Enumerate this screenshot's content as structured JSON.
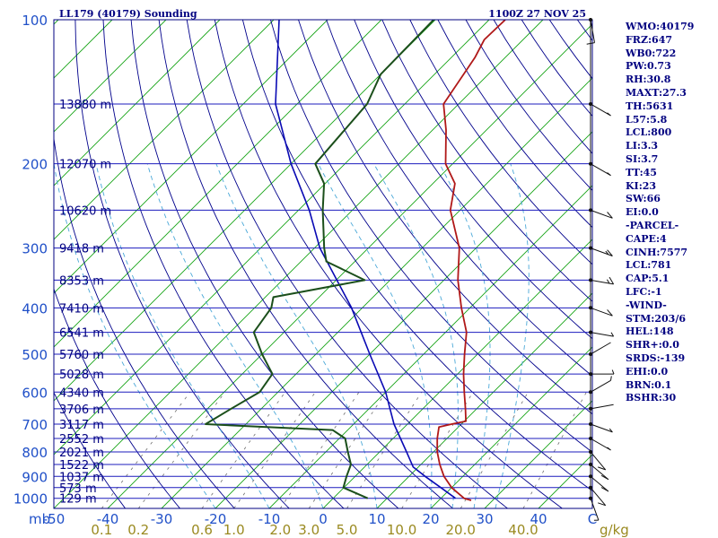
{
  "colors": {
    "isobar": "#1c1cbe",
    "frame": "#000080",
    "dry_adiabat": "#00008b",
    "moist_adiabat": "#4aa8d8",
    "mixing_ratio": "#6e6e6e",
    "isotherm": "#16a316",
    "temperature": "#b01818",
    "dewpoint": "#1b4f1b",
    "parcel": "#0a0ab4",
    "wind_barb": "#111111",
    "left_labels": "#2050c8",
    "ticks_mixing": "#9a8a20"
  },
  "chart_data": {
    "type": "skew-t log-p sounding",
    "title": "LL179 (40179) Sounding",
    "time": "1100Z 27 NOV 25",
    "pressure_unit_label": "mb",
    "mixing_unit_label": "g/kg",
    "pressure_ticks": [
      {
        "p": 100,
        "label": "100"
      },
      {
        "p": 200,
        "label": "200"
      },
      {
        "p": 300,
        "label": "300"
      },
      {
        "p": 400,
        "label": "400"
      },
      {
        "p": 500,
        "label": "500"
      },
      {
        "p": 600,
        "label": "600"
      },
      {
        "p": 700,
        "label": "700"
      },
      {
        "p": 800,
        "label": "800"
      },
      {
        "p": 900,
        "label": "900"
      },
      {
        "p": 1000,
        "label": "1000"
      }
    ],
    "height_levels": [
      {
        "p": 150,
        "label": "13880 m"
      },
      {
        "p": 200,
        "label": "12070 m"
      },
      {
        "p": 250,
        "label": "10620 m"
      },
      {
        "p": 300,
        "label": "9418 m"
      },
      {
        "p": 350,
        "label": "8353 m"
      },
      {
        "p": 400,
        "label": "7410 m"
      },
      {
        "p": 450,
        "label": "6541 m"
      },
      {
        "p": 500,
        "label": "5760 m"
      },
      {
        "p": 550,
        "label": "5028 m"
      },
      {
        "p": 600,
        "label": "4340 m"
      },
      {
        "p": 650,
        "label": "3706 m"
      },
      {
        "p": 700,
        "label": "3117 m"
      },
      {
        "p": 750,
        "label": "2552 m"
      },
      {
        "p": 800,
        "label": "2021 m"
      },
      {
        "p": 850,
        "label": "1522 m"
      },
      {
        "p": 900,
        "label": "1037 m"
      },
      {
        "p": 950,
        "label": "573 m"
      },
      {
        "p": 1000,
        "label": "129 m"
      }
    ],
    "temperature_ticks": [
      {
        "t": -50,
        "label": "-50"
      },
      {
        "t": -40,
        "label": "-40"
      },
      {
        "t": -30,
        "label": "-30"
      },
      {
        "t": -20,
        "label": "-20"
      },
      {
        "t": -10,
        "label": "-10"
      },
      {
        "t": 0,
        "label": "0"
      },
      {
        "t": 10,
        "label": "10"
      },
      {
        "t": 20,
        "label": "20"
      },
      {
        "t": 30,
        "label": "30"
      },
      {
        "t": 40,
        "label": "40"
      },
      {
        "t": 50,
        "label": "C"
      }
    ],
    "mixing_ratio_ticks": [
      {
        "w": 0.1,
        "label": "0.1"
      },
      {
        "w": 0.2,
        "label": "0.2"
      },
      {
        "w": 0.6,
        "label": "0.6"
      },
      {
        "w": 1.0,
        "label": "1.0"
      },
      {
        "w": 2.0,
        "label": "2.0"
      },
      {
        "w": 3.0,
        "label": "3.0"
      },
      {
        "w": 5.0,
        "label": "5.0"
      },
      {
        "w": 10.0,
        "label": "10.0"
      },
      {
        "w": 20.0,
        "label": "20.0"
      },
      {
        "w": 40.0,
        "label": "40.0"
      }
    ],
    "temperature_profile": [
      [
        1010,
        26
      ],
      [
        1000,
        24.3
      ],
      [
        950,
        20
      ],
      [
        900,
        16.5
      ],
      [
        850,
        13.5
      ],
      [
        800,
        10.7
      ],
      [
        750,
        8.2
      ],
      [
        710,
        6.4
      ],
      [
        700,
        8.2
      ],
      [
        690,
        10.3
      ],
      [
        650,
        7.9
      ],
      [
        600,
        4.6
      ],
      [
        550,
        1.1
      ],
      [
        500,
        -2.4
      ],
      [
        450,
        -6.1
      ],
      [
        400,
        -11.6
      ],
      [
        350,
        -17.4
      ],
      [
        300,
        -23.1
      ],
      [
        250,
        -31.8
      ],
      [
        220,
        -35.9
      ],
      [
        200,
        -41.3
      ],
      [
        170,
        -47.5
      ],
      [
        150,
        -52.8
      ],
      [
        120,
        -55.6
      ],
      [
        110,
        -57.2
      ],
      [
        100,
        -57.0
      ]
    ],
    "dewpoint_profile": [
      [
        1000,
        6.4
      ],
      [
        950,
        -0.1
      ],
      [
        900,
        -1.6
      ],
      [
        850,
        -3.0
      ],
      [
        800,
        -5.9
      ],
      [
        750,
        -8.9
      ],
      [
        720,
        -12.8
      ],
      [
        710,
        -25.6
      ],
      [
        700,
        -37.5
      ],
      [
        650,
        -35.6
      ],
      [
        600,
        -33.4
      ],
      [
        550,
        -34.4
      ],
      [
        500,
        -40.0
      ],
      [
        450,
        -45.6
      ],
      [
        400,
        -46.9
      ],
      [
        380,
        -48.5
      ],
      [
        350,
        -34.7
      ],
      [
        320,
        -45.3
      ],
      [
        300,
        -48.2
      ],
      [
        250,
        -55.5
      ],
      [
        220,
        -60.2
      ],
      [
        200,
        -65.5
      ],
      [
        150,
        -67.0
      ],
      [
        130,
        -70.0
      ],
      [
        100,
        -70.3
      ]
    ],
    "parcel_path": [
      [
        1000,
        22.7
      ],
      [
        950,
        18.0
      ],
      [
        900,
        13.0
      ],
      [
        860,
        9.0
      ],
      [
        800,
        5.0
      ],
      [
        700,
        -2.5
      ],
      [
        600,
        -10.0
      ],
      [
        500,
        -20.0
      ],
      [
        400,
        -32.0
      ],
      [
        300,
        -49.0
      ],
      [
        250,
        -58.0
      ],
      [
        200,
        -70.0
      ],
      [
        150,
        -84.0
      ],
      [
        100,
        -99.0
      ]
    ],
    "wind_profile": [
      {
        "p": 1000,
        "dir": 200,
        "spd": 8
      },
      {
        "p": 950,
        "dir": 220,
        "spd": 12
      },
      {
        "p": 900,
        "dir": 230,
        "spd": 12
      },
      {
        "p": 850,
        "dir": 230,
        "spd": 10
      },
      {
        "p": 800,
        "dir": 220,
        "spd": 10
      },
      {
        "p": 750,
        "dir": 240,
        "spd": 8
      },
      {
        "p": 700,
        "dir": 250,
        "spd": 6
      },
      {
        "p": 650,
        "dir": 280,
        "spd": 4
      },
      {
        "p": 600,
        "dir": 300,
        "spd": 5
      },
      {
        "p": 550,
        "dir": 270,
        "spd": 5
      },
      {
        "p": 500,
        "dir": 300,
        "spd": 4
      },
      {
        "p": 450,
        "dir": 260,
        "spd": 5
      },
      {
        "p": 400,
        "dir": 250,
        "spd": 10
      },
      {
        "p": 350,
        "dir": 260,
        "spd": 15
      },
      {
        "p": 300,
        "dir": 250,
        "spd": 15
      },
      {
        "p": 250,
        "dir": 250,
        "spd": 10
      },
      {
        "p": 200,
        "dir": 240,
        "spd": 5
      },
      {
        "p": 150,
        "dir": 240,
        "spd": 5
      },
      {
        "p": 100,
        "dir": 190,
        "spd": 10
      }
    ],
    "axis": {
      "p_bottom": 1050,
      "p_top": 100,
      "t_left_at_bottom": -50,
      "t_right_at_bottom": 50
    }
  },
  "indices": [
    "WMO:40179",
    "FRZ:647",
    "WB0:722",
    "PW:0.73",
    "RH:30.8",
    "MAXT:27.3",
    "TH:5631",
    "L57:5.8",
    "LCL:800",
    "LI:3.3",
    "SI:3.7",
    "TT:45",
    "KI:23",
    "SW:66",
    "EI:0.0",
    "-PARCEL-",
    "CAPE:4",
    "CINH:7577",
    "LCL:781",
    "CAP:5.1",
    "LFC:-1",
    "-WIND-",
    "STM:203/6",
    "HEL:148",
    "SHR+:0.0",
    "SRDS:-139",
    "EHI:0.0",
    "BRN:0.1",
    "BSHR:30"
  ]
}
